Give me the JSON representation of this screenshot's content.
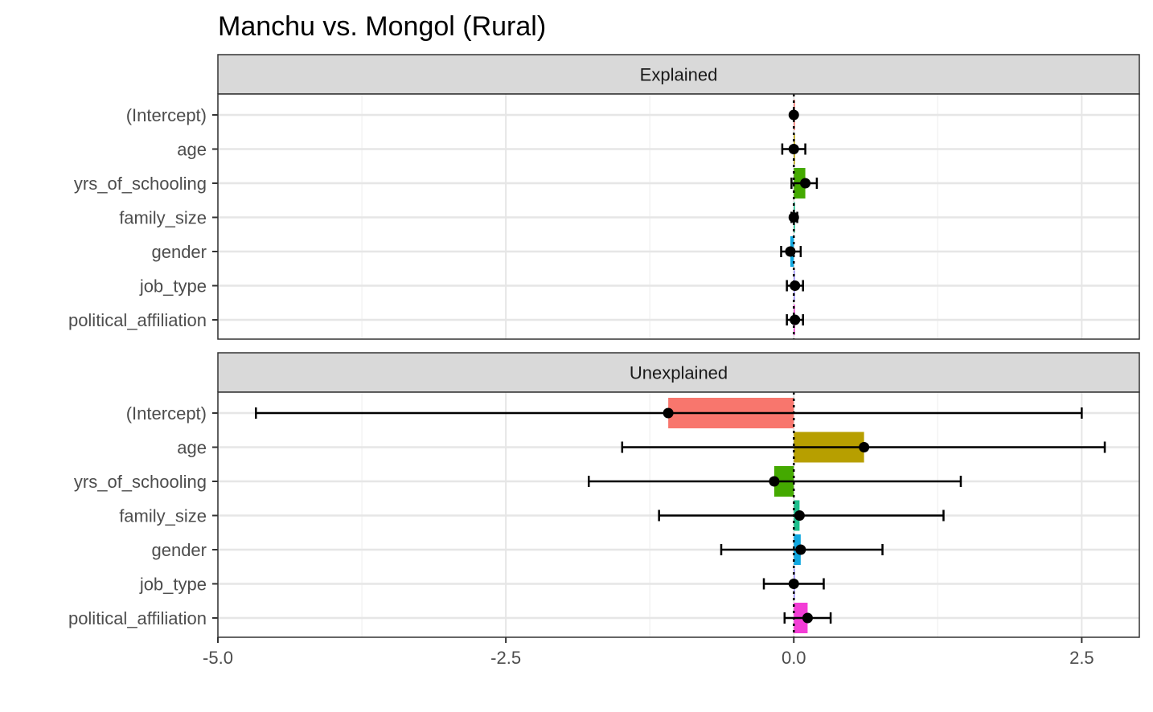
{
  "chart_data": {
    "type": "bar",
    "title": "Manchu vs. Mongol (Rural)",
    "xlabel": "",
    "ylabel": "",
    "xlim": [
      -5.0,
      3.0
    ],
    "x_ticks": [
      -5.0,
      -2.5,
      0.0,
      2.5
    ],
    "x_tick_labels": [
      "-5.0",
      "-2.5",
      "0.0",
      "2.5"
    ],
    "categories": [
      "(Intercept)",
      "age",
      "yrs_of_schooling",
      "family_size",
      "gender",
      "job_type",
      "political_affiliation"
    ],
    "colors": [
      "#F8766D",
      "#B79F00",
      "#44A900",
      "#1CBE8C",
      "#10A8E0",
      "#9C8EFF",
      "#F33DD6"
    ],
    "reference_line": 0.0,
    "panels": [
      {
        "name": "Explained",
        "values": [
          0.0,
          0.0,
          0.1,
          0.0,
          -0.03,
          0.01,
          0.01
        ],
        "ci_low": [
          0.0,
          -0.1,
          -0.02,
          -0.02,
          -0.11,
          -0.06,
          -0.06
        ],
        "ci_high": [
          0.0,
          0.1,
          0.2,
          0.03,
          0.06,
          0.08,
          0.08
        ]
      },
      {
        "name": "Unexplained",
        "values": [
          -1.09,
          0.61,
          -0.17,
          0.05,
          0.06,
          0.0,
          0.12
        ],
        "ci_low": [
          -4.67,
          -1.49,
          -1.78,
          -1.17,
          -0.63,
          -0.26,
          -0.08
        ],
        "ci_high": [
          2.5,
          2.7,
          1.45,
          1.3,
          0.77,
          0.26,
          0.32
        ]
      }
    ]
  }
}
